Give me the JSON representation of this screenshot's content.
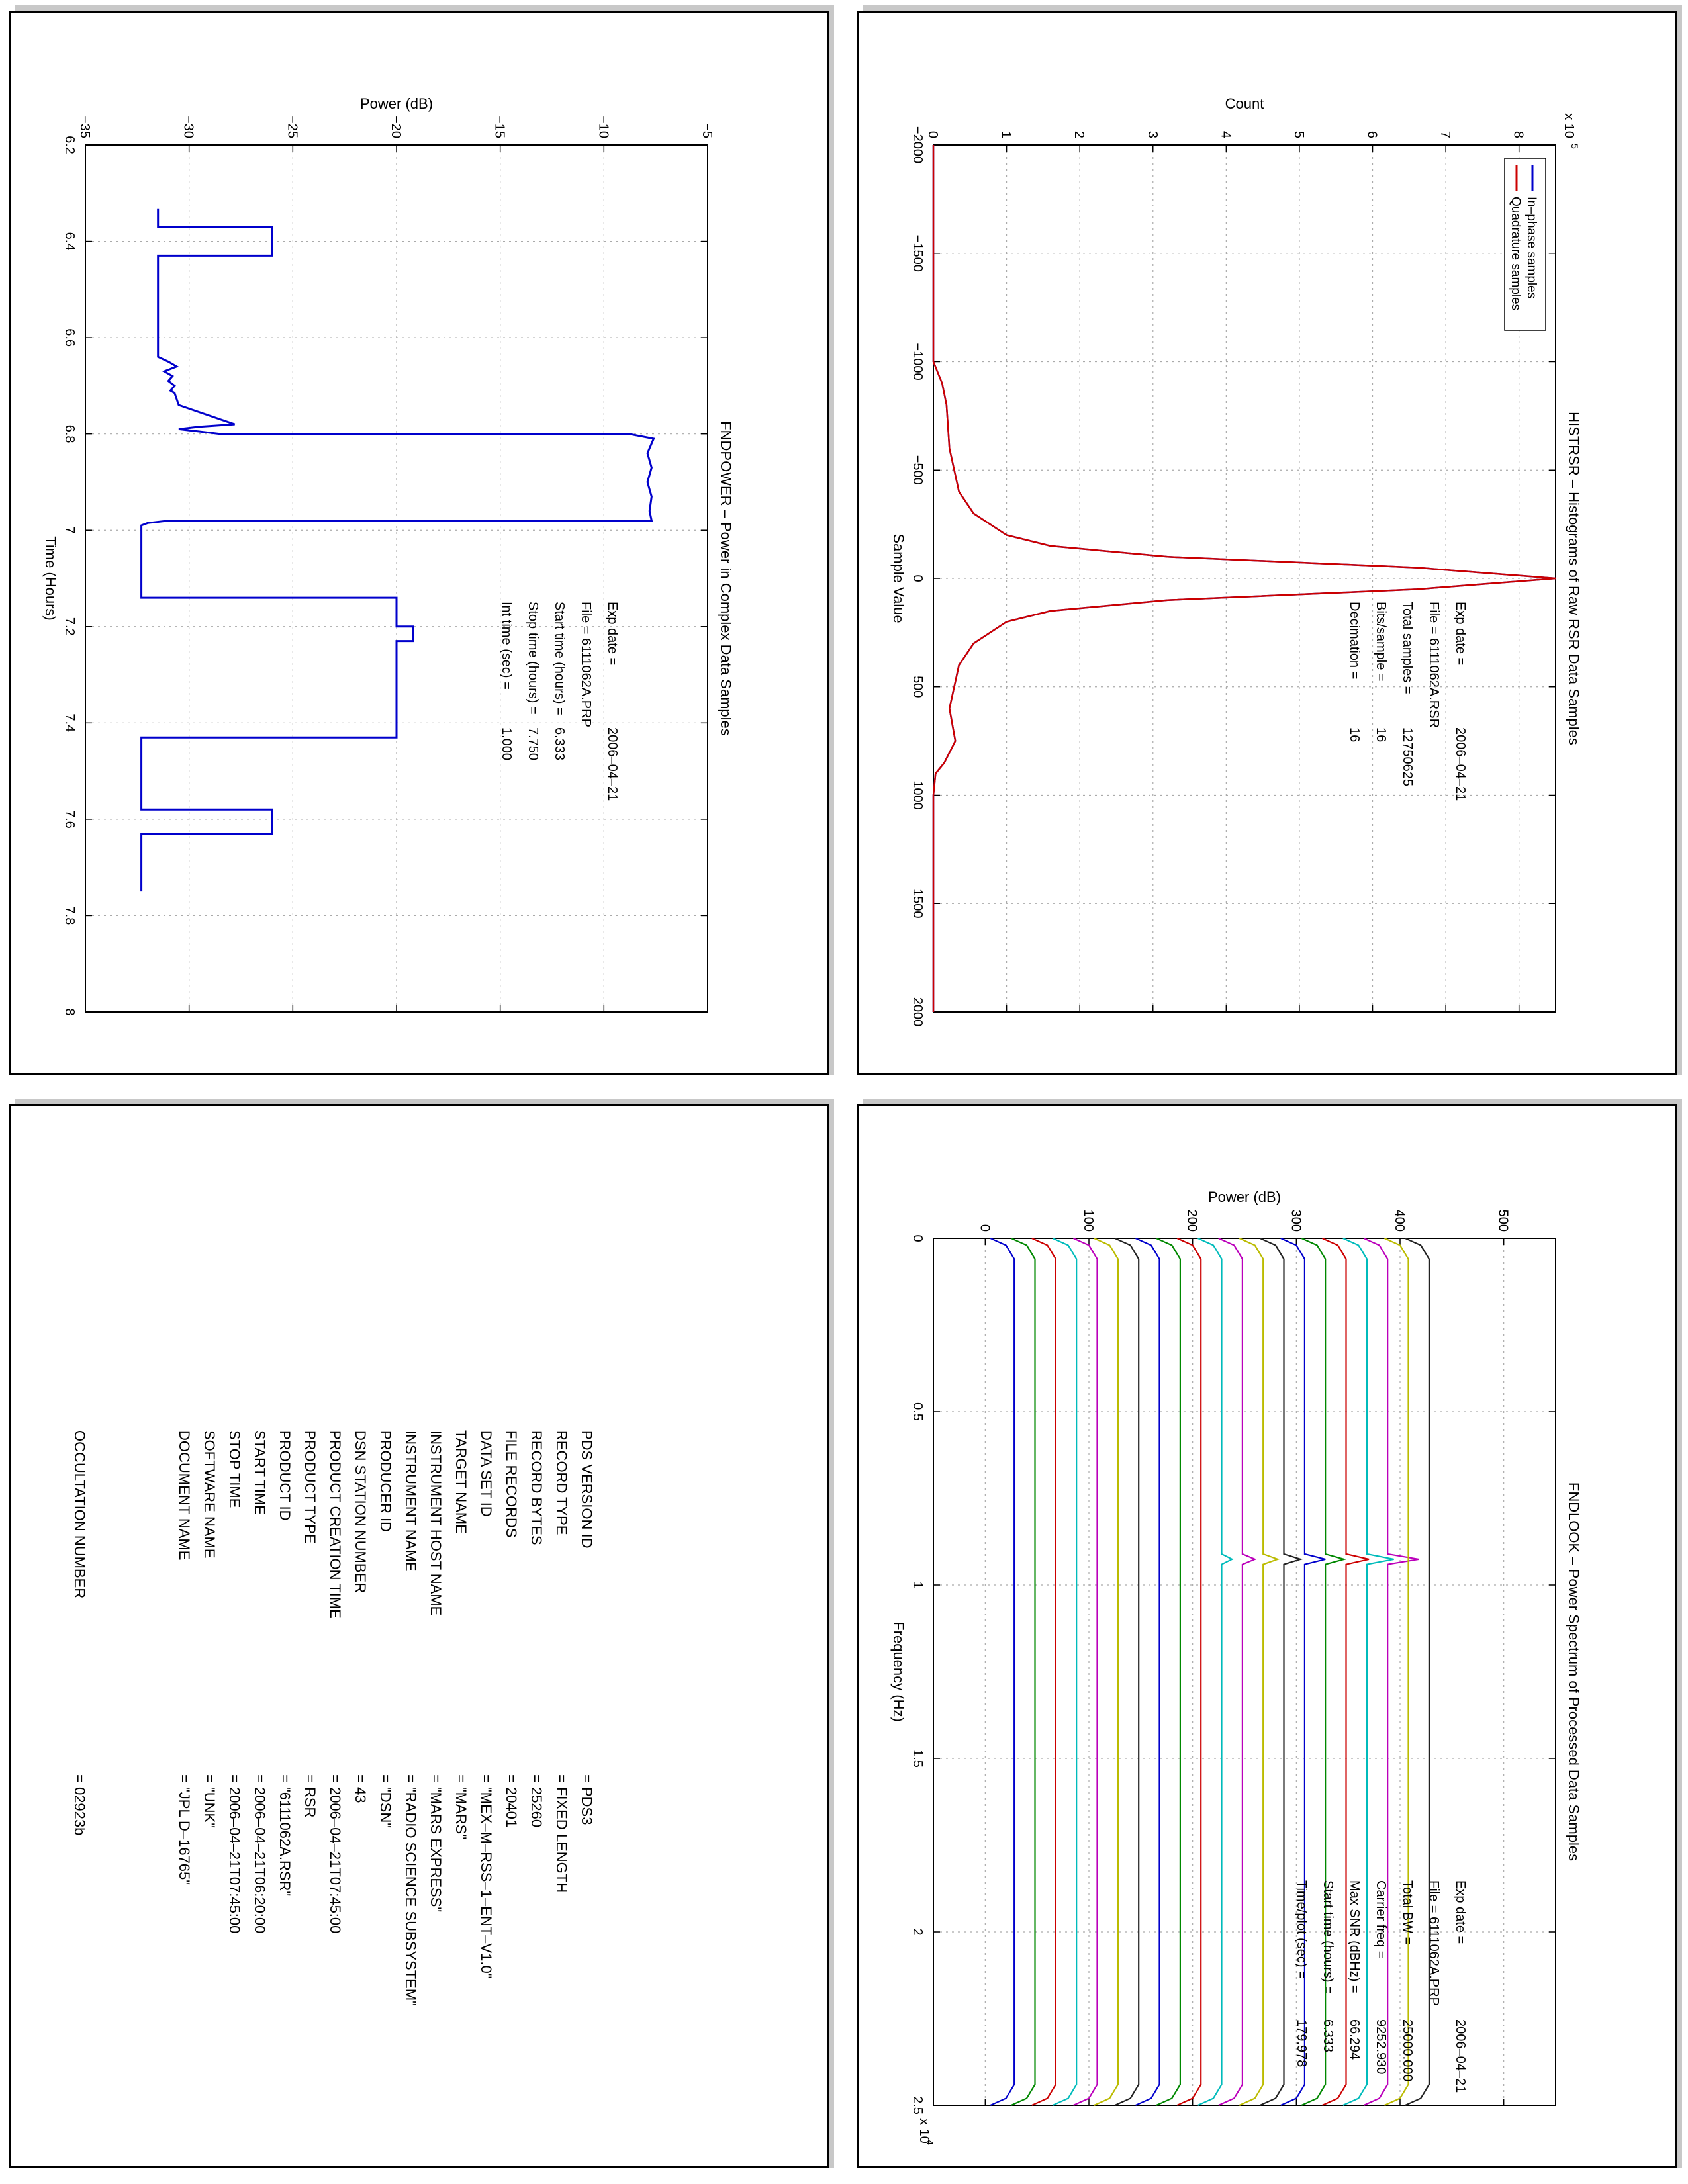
{
  "charts": {
    "fndpower": {
      "title": "FNDPOWER – Power in Complex Data Samples",
      "xlabel": "Time (Hours)",
      "ylabel": "Power (dB)",
      "info": [
        {
          "label": "Exp date =",
          "value": "2006–04–21"
        },
        {
          "label": "File = 6111062A.PRP",
          "value": ""
        },
        {
          "label": "Start time (hours) =",
          "value": "6.333"
        },
        {
          "label": "Stop time (hours) =",
          "value": "7.750"
        },
        {
          "label": "Int time (sec) =",
          "value": "1.000"
        }
      ]
    },
    "histrsr": {
      "title": "HISTRSR – Histograms of Raw RSR Data Samples",
      "xlabel": "Sample Value",
      "ylabel": "Count",
      "yexp": "x 10",
      "yexp_power": "5",
      "legend": [
        "In–phase samples",
        "Quadrature samples"
      ],
      "info": [
        {
          "label": "Exp date =",
          "value": "2006–04–21"
        },
        {
          "label": "File = 6111062A.RSR",
          "value": ""
        },
        {
          "label": "Total samples =",
          "value": "12750625"
        },
        {
          "label": "Bits/sample =",
          "value": "16"
        },
        {
          "label": "Decimation =",
          "value": "16"
        }
      ]
    },
    "fndlook": {
      "title": "FNDLOOK – Power Spectrum of Processed Data Samples",
      "xlabel": "Frequency (Hz)",
      "ylabel": "Power (dB)",
      "xexp": "x 10",
      "xexp_power": "4",
      "info": [
        {
          "label": "Exp date =",
          "value": "2006–04–21"
        },
        {
          "label": "File = 6111062A.PRP",
          "value": ""
        },
        {
          "label": "Total BW =",
          "value": "25000.000"
        },
        {
          "label": "Carrier freq =",
          "value": "9252.930"
        },
        {
          "label": "Max SNR (dBHz) =",
          "value": "66.294"
        },
        {
          "label": "Start time (hours) =",
          "value": "6.333"
        },
        {
          "label": "Time/plot (sec) =",
          "value": "179.978"
        }
      ]
    }
  },
  "label_table": {
    "rows": [
      {
        "key": "PDS VERSION ID",
        "value": "= PDS3"
      },
      {
        "key": "RECORD TYPE",
        "value": "= FIXED LENGTH"
      },
      {
        "key": "RECORD BYTES",
        "value": "= 25260"
      },
      {
        "key": "FILE RECORDS",
        "value": "= 20401"
      },
      {
        "key": "DATA SET ID",
        "value": "= \"MEX–M–RSS–1–ENT–V1.0\""
      },
      {
        "key": "TARGET NAME",
        "value": "= \"MARS\""
      },
      {
        "key": "INSTRUMENT HOST NAME",
        "value": "= \"MARS EXPRESS\""
      },
      {
        "key": "INSTRUMENT NAME",
        "value": "= \"RADIO SCIENCE SUBSYSTEM\""
      },
      {
        "key": "PRODUCER ID",
        "value": "= \"DSN\""
      },
      {
        "key": "DSN STATION NUMBER",
        "value": "= 43"
      },
      {
        "key": "PRODUCT CREATION TIME",
        "value": "= 2006–04–21T07:45:00"
      },
      {
        "key": "PRODUCT TYPE",
        "value": "= RSR"
      },
      {
        "key": "PRODUCT ID",
        "value": "= \"6111062A.RSR\""
      },
      {
        "key": "START TIME",
        "value": "= 2006–04–21T06:20:00"
      },
      {
        "key": "STOP TIME",
        "value": "= 2006–04–21T07:45:00"
      },
      {
        "key": "SOFTWARE NAME",
        "value": "= \"UNK\""
      },
      {
        "key": "DOCUMENT NAME",
        "value": "= \"JPL D–16765\""
      }
    ],
    "extra": {
      "key": "OCCULTATION NUMBER",
      "value": "= 02923b"
    }
  },
  "chart_data": [
    {
      "type": "line",
      "name": "fndpower",
      "title": "FNDPOWER – Power in Complex Data Samples",
      "xlabel": "Time (Hours)",
      "ylabel": "Power (dB)",
      "xlim": [
        6.2,
        8
      ],
      "ylim": [
        -35,
        -5
      ],
      "xticks": [
        "6.2",
        "6.4",
        "6.6",
        "6.8",
        "7",
        "7.2",
        "7.4",
        "7.6",
        "7.8",
        "8"
      ],
      "yticks": [
        "−35",
        "−30",
        "−25",
        "−20",
        "−15",
        "−10",
        "−5"
      ],
      "grid": true,
      "color": "#0000cc",
      "x": [
        6.333,
        6.37,
        6.37,
        6.43,
        6.43,
        6.64,
        6.65,
        6.66,
        6.67,
        6.68,
        6.69,
        6.7,
        6.71,
        6.715,
        6.74,
        6.78,
        6.785,
        6.79,
        6.8,
        6.8,
        6.81,
        6.84,
        6.87,
        6.9,
        6.93,
        6.96,
        6.98,
        6.98,
        6.985,
        6.99,
        7.14,
        7.14,
        7.2,
        7.2,
        7.23,
        7.23,
        7.27,
        7.27,
        7.43,
        7.43,
        7.58,
        7.58,
        7.63,
        7.63,
        7.75
      ],
      "y": [
        -31.5,
        -31.5,
        -26.0,
        -26.0,
        -31.5,
        -31.5,
        -31.0,
        -30.6,
        -31.2,
        -30.8,
        -31.0,
        -30.7,
        -30.9,
        -30.7,
        -30.5,
        -27.8,
        -29.5,
        -30.5,
        -28.5,
        -8.8,
        -7.6,
        -7.9,
        -7.7,
        -7.9,
        -7.7,
        -7.8,
        -7.7,
        -31.0,
        -32.0,
        -32.3,
        -32.3,
        -20.0,
        -20.0,
        -19.2,
        -19.2,
        -20.0,
        -20.0,
        -20.0,
        -20.0,
        -32.3,
        -32.3,
        -26.0,
        -26.0,
        -32.3,
        -32.3
      ]
    },
    {
      "type": "line",
      "name": "histrsr",
      "title": "HISTRSR – Histograms of Raw RSR Data Samples",
      "xlabel": "Sample Value",
      "ylabel": "Count",
      "xlim": [
        -2000,
        2000
      ],
      "ylim": [
        0,
        8.5
      ],
      "y_scale_note": "x 10^5",
      "xticks": [
        "−2000",
        "−1500",
        "−1000",
        "−500",
        "0",
        "500",
        "1000",
        "1500",
        "2000"
      ],
      "yticks": [
        "0",
        "1",
        "2",
        "3",
        "4",
        "5",
        "6",
        "7",
        "8"
      ],
      "grid": true,
      "legend_position": "top-right",
      "series": [
        {
          "name": "In–phase samples",
          "color": "#0000cc",
          "x": [
            -2000,
            -1000,
            -900,
            -800,
            -600,
            -400,
            -300,
            -200,
            -150,
            -100,
            -50,
            0,
            50,
            100,
            150,
            200,
            300,
            400,
            600,
            750,
            850,
            900,
            1000,
            2000
          ],
          "y": [
            0,
            0,
            0.12,
            0.18,
            0.22,
            0.35,
            0.55,
            1.0,
            1.6,
            3.2,
            6.6,
            8.5,
            6.6,
            3.2,
            1.6,
            1.0,
            0.55,
            0.35,
            0.22,
            0.3,
            0.15,
            0.03,
            0,
            0
          ]
        },
        {
          "name": "Quadrature samples",
          "color": "#cc0000",
          "x": [
            -2000,
            -1000,
            -900,
            -800,
            -600,
            -400,
            -300,
            -200,
            -150,
            -100,
            -50,
            0,
            50,
            100,
            150,
            200,
            300,
            400,
            600,
            750,
            850,
            900,
            1000,
            2000
          ],
          "y": [
            0,
            0,
            0.12,
            0.18,
            0.22,
            0.35,
            0.55,
            1.0,
            1.6,
            3.2,
            6.6,
            8.5,
            6.6,
            3.2,
            1.6,
            1.0,
            0.55,
            0.35,
            0.22,
            0.3,
            0.15,
            0.03,
            0,
            0
          ]
        }
      ]
    },
    {
      "type": "line",
      "name": "fndlook",
      "title": "FNDLOOK – Power Spectrum of Processed Data Samples",
      "xlabel": "Frequency (Hz)",
      "ylabel": "Power (dB)",
      "xlim": [
        0,
        25000
      ],
      "ylim": [
        -50,
        550
      ],
      "x_scale_note": "x 10^4",
      "xticks": [
        "0",
        "0.5",
        "1",
        "1.5",
        "2",
        "2.5"
      ],
      "yticks": [
        "0",
        "100",
        "200",
        "300",
        "400",
        "500"
      ],
      "grid": true,
      "trace_colors": [
        "#0000cc",
        "#008800",
        "#cc0000",
        "#00bbbb",
        "#bb00bb",
        "#bbbb00",
        "#222222"
      ],
      "trace_count": 21,
      "trace_base_start": 5,
      "trace_base_step": 20,
      "trace_height": 23,
      "peak_freq": 9252.93,
      "peak_height": [
        0,
        0,
        0,
        0,
        0,
        0,
        0,
        0,
        0,
        0,
        10,
        12,
        14,
        16,
        20,
        18,
        22,
        26,
        30,
        0,
        0
      ]
    }
  ]
}
